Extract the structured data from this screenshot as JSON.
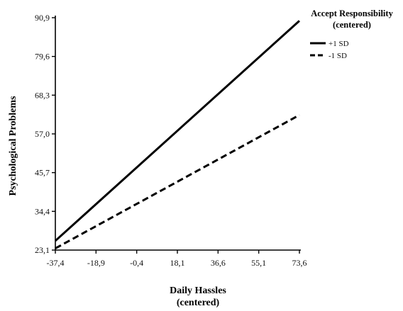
{
  "chart_data": {
    "type": "line",
    "xlabel": [
      "Daily Hassles",
      "(centered)"
    ],
    "ylabel": "Psychological Problems",
    "x_ticks": [
      "-37,4",
      "-18,9",
      "-0,4",
      "18,1",
      "36,6",
      "55,1",
      "73,6"
    ],
    "y_ticks": [
      "23,1",
      "34,4",
      "45,7",
      "57,0",
      "68,3",
      "79,6",
      "90,9"
    ],
    "xlim": [
      -37.4,
      73.6
    ],
    "ylim": [
      23.1,
      90.9
    ],
    "legend": {
      "title": [
        "Accept Responsibility",
        "(centered)"
      ],
      "placement": "top-right"
    },
    "series": [
      {
        "name": "+1 SD",
        "style": "solid",
        "color": "#000000",
        "x": [
          -37.4,
          73.6
        ],
        "y": [
          25.8,
          90.0
        ]
      },
      {
        "name": "-1 SD",
        "style": "dashed",
        "color": "#000000",
        "x": [
          -37.4,
          73.6
        ],
        "y": [
          23.6,
          62.5
        ]
      }
    ]
  }
}
